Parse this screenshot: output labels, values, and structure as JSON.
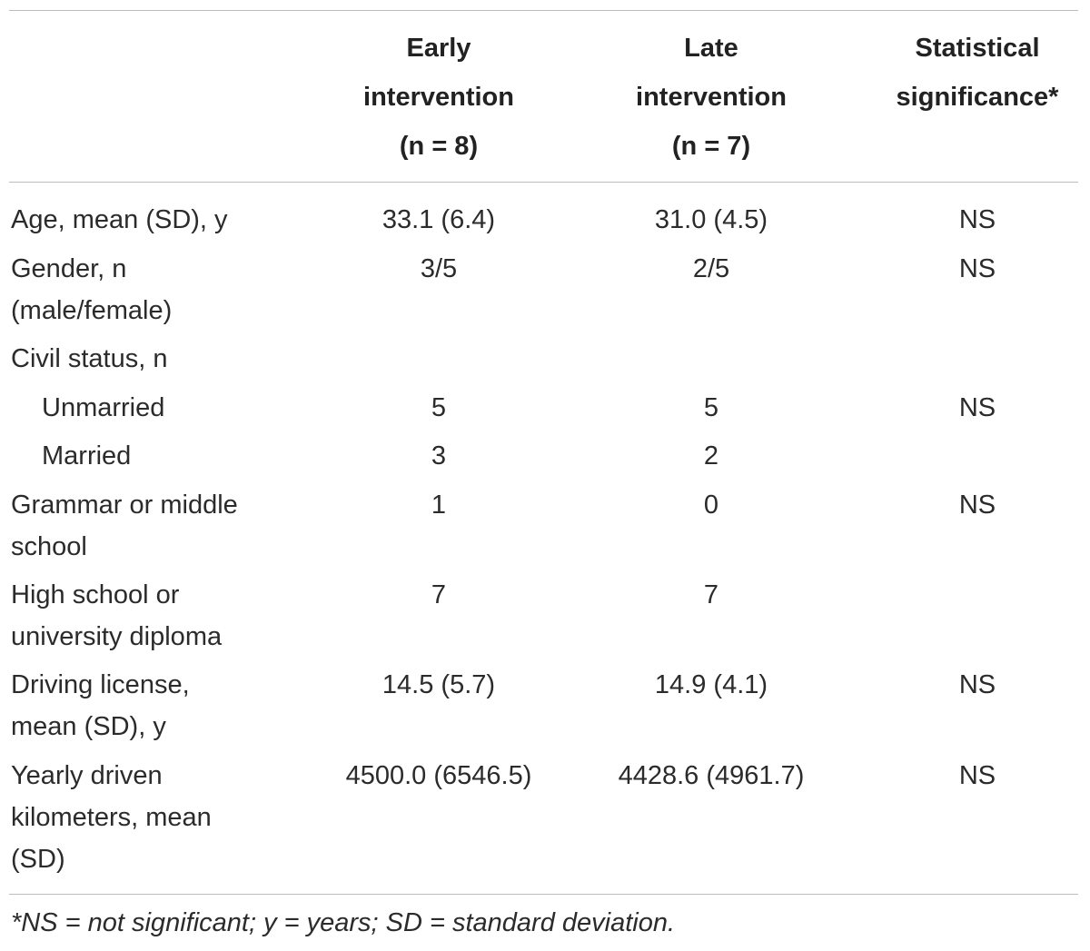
{
  "header": {
    "col_early": [
      "Early",
      "intervention",
      "(n = 8)"
    ],
    "col_late": [
      "Late",
      "intervention",
      "(n = 7)"
    ],
    "col_stat": [
      "Statistical",
      "significance*"
    ]
  },
  "rows": {
    "age": {
      "label": [
        "Age, mean (SD), y"
      ],
      "early": "33.1 (6.4)",
      "late": "31.0 (4.5)",
      "stat": "NS"
    },
    "gender": {
      "label": [
        "Gender, n",
        "(male/female)"
      ],
      "early": "3/5",
      "late": "2/5",
      "stat": "NS"
    },
    "civil": {
      "label": [
        "Civil status, n"
      ]
    },
    "unmarried": {
      "label": [
        "Unmarried"
      ],
      "early": "5",
      "late": "5",
      "stat": "NS"
    },
    "married": {
      "label": [
        "Married"
      ],
      "early": "3",
      "late": "2"
    },
    "grammar": {
      "label": [
        "Grammar or middle",
        "school"
      ],
      "early": "1",
      "late": "0",
      "stat": "NS"
    },
    "highschool": {
      "label": [
        "High school or",
        "university diploma"
      ],
      "early": "7",
      "late": "7"
    },
    "license": {
      "label": [
        "Driving license,",
        "mean (SD), y"
      ],
      "early": "14.5 (5.7)",
      "late": "14.9 (4.1)",
      "stat": "NS"
    },
    "km": {
      "label": [
        "Yearly driven",
        "kilometers, mean",
        "(SD)"
      ],
      "early": "4500.0 (6546.5)",
      "late": "4428.6 (4961.7)",
      "stat": "NS"
    }
  },
  "footnote": "*NS = not significant; y = years; SD = standard deviation."
}
